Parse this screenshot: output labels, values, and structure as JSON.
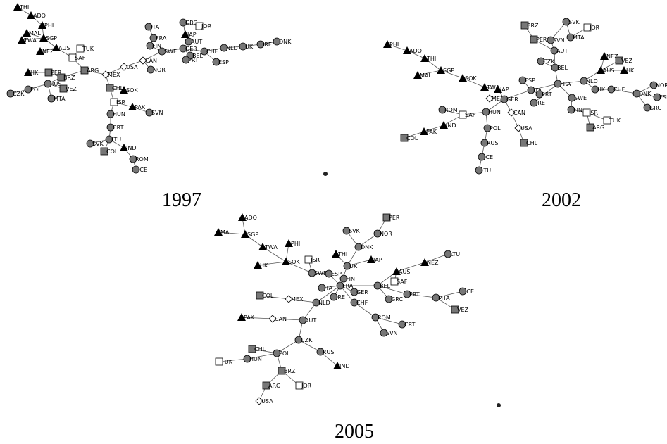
{
  "panels": [
    {
      "title": "1997",
      "nodes": [
        {
          "label": "THI",
          "shape": "triangle"
        },
        {
          "label": "ADO",
          "shape": "triangle"
        },
        {
          "label": "PHI",
          "shape": "triangle"
        },
        {
          "label": "MAL",
          "shape": "triangle"
        },
        {
          "label": "SGP",
          "shape": "triangle"
        },
        {
          "label": "TWA",
          "shape": "triangle"
        },
        {
          "label": "NEZ",
          "shape": "triangle"
        },
        {
          "label": "AUS",
          "shape": "triangle"
        },
        {
          "label": "TUK",
          "shape": "white-square"
        },
        {
          "label": "SAF",
          "shape": "white-square"
        },
        {
          "label": "HK",
          "shape": "triangle"
        },
        {
          "label": "PER",
          "shape": "gray-square"
        },
        {
          "label": "BRZ",
          "shape": "gray-square"
        },
        {
          "label": "RUS",
          "shape": "circle"
        },
        {
          "label": "POL",
          "shape": "circle"
        },
        {
          "label": "CZK",
          "shape": "circle"
        },
        {
          "label": "VEZ",
          "shape": "gray-square"
        },
        {
          "label": "MTA",
          "shape": "circle"
        },
        {
          "label": "ARG",
          "shape": "gray-square"
        },
        {
          "label": "MEX",
          "shape": "diamond"
        },
        {
          "label": "USA",
          "shape": "diamond"
        },
        {
          "label": "CAN",
          "shape": "diamond"
        },
        {
          "label": "NOR",
          "shape": "circle"
        },
        {
          "label": "SWE",
          "shape": "circle"
        },
        {
          "label": "FIN",
          "shape": "circle"
        },
        {
          "label": "FRA",
          "shape": "circle"
        },
        {
          "label": "ITA",
          "shape": "circle"
        },
        {
          "label": "GRC",
          "shape": "circle"
        },
        {
          "label": "JOR",
          "shape": "white-square"
        },
        {
          "label": "JAP",
          "shape": "triangle"
        },
        {
          "label": "AUT",
          "shape": "circle"
        },
        {
          "label": "GER",
          "shape": "circle"
        },
        {
          "label": "BEL",
          "shape": "circle"
        },
        {
          "label": "PRT",
          "shape": "circle"
        },
        {
          "label": "CHF",
          "shape": "circle"
        },
        {
          "label": "ESP",
          "shape": "circle"
        },
        {
          "label": "NLD",
          "shape": "circle"
        },
        {
          "label": "UK",
          "shape": "circle"
        },
        {
          "label": "IRE",
          "shape": "circle"
        },
        {
          "label": "DNK",
          "shape": "circle"
        },
        {
          "label": "CHL",
          "shape": "gray-square"
        },
        {
          "label": "SOK",
          "shape": "triangle"
        },
        {
          "label": "ISR",
          "shape": "white-square"
        },
        {
          "label": "PAK",
          "shape": "triangle"
        },
        {
          "label": "SVN",
          "shape": "circle"
        },
        {
          "label": "HUN",
          "shape": "circle"
        },
        {
          "label": "CRT",
          "shape": "circle"
        },
        {
          "label": "LTU",
          "shape": "circle"
        },
        {
          "label": "SVK",
          "shape": "circle"
        },
        {
          "label": "COL",
          "shape": "gray-square"
        },
        {
          "label": "IND",
          "shape": "triangle"
        },
        {
          "label": "ROM",
          "shape": "circle"
        },
        {
          "label": "ICE",
          "shape": "circle"
        }
      ]
    },
    {
      "title": "2002",
      "nodes": [
        {
          "label": "PHI",
          "shape": "triangle"
        },
        {
          "label": "ADO",
          "shape": "triangle"
        },
        {
          "label": "THI",
          "shape": "triangle"
        },
        {
          "label": "MAL",
          "shape": "triangle"
        },
        {
          "label": "SGP",
          "shape": "triangle"
        },
        {
          "label": "SOK",
          "shape": "triangle"
        },
        {
          "label": "TWA",
          "shape": "triangle"
        },
        {
          "label": "JAP",
          "shape": "triangle"
        },
        {
          "label": "MEX",
          "shape": "diamond"
        },
        {
          "label": "GER",
          "shape": "circle"
        },
        {
          "label": "ROM",
          "shape": "circle"
        },
        {
          "label": "SAF",
          "shape": "white-square"
        },
        {
          "label": "HUN",
          "shape": "circle"
        },
        {
          "label": "CAN",
          "shape": "diamond"
        },
        {
          "label": "IND",
          "shape": "triangle"
        },
        {
          "label": "PAK",
          "shape": "triangle"
        },
        {
          "label": "COL",
          "shape": "gray-square"
        },
        {
          "label": "POL",
          "shape": "circle"
        },
        {
          "label": "USA",
          "shape": "diamond"
        },
        {
          "label": "CHL",
          "shape": "gray-square"
        },
        {
          "label": "RUS",
          "shape": "circle"
        },
        {
          "label": "ICE",
          "shape": "circle"
        },
        {
          "label": "LTU",
          "shape": "circle"
        },
        {
          "label": "ESP",
          "shape": "circle"
        },
        {
          "label": "ITA",
          "shape": "circle"
        },
        {
          "label": "PRT",
          "shape": "circle"
        },
        {
          "label": "IRE",
          "shape": "circle"
        },
        {
          "label": "FRA",
          "shape": "circle"
        },
        {
          "label": "BEL",
          "shape": "circle"
        },
        {
          "label": "CZK",
          "shape": "circle"
        },
        {
          "label": "AUT",
          "shape": "circle"
        },
        {
          "label": "BRZ",
          "shape": "gray-square"
        },
        {
          "label": "PER",
          "shape": "gray-square"
        },
        {
          "label": "SVN",
          "shape": "circle"
        },
        {
          "label": "SVK",
          "shape": "circle"
        },
        {
          "label": "JOR",
          "shape": "white-square"
        },
        {
          "label": "MTA",
          "shape": "circle"
        },
        {
          "label": "NLD",
          "shape": "circle"
        },
        {
          "label": "SWE",
          "shape": "circle"
        },
        {
          "label": "FIN",
          "shape": "circle"
        },
        {
          "label": "ISR",
          "shape": "white-square"
        },
        {
          "label": "TUK",
          "shape": "white-square"
        },
        {
          "label": "ARG",
          "shape": "gray-square"
        },
        {
          "label": "NEZ",
          "shape": "triangle"
        },
        {
          "label": "VEZ",
          "shape": "gray-square"
        },
        {
          "label": "AUS",
          "shape": "triangle"
        },
        {
          "label": "HK",
          "shape": "triangle"
        },
        {
          "label": "UK",
          "shape": "circle"
        },
        {
          "label": "CHF",
          "shape": "circle"
        },
        {
          "label": "DNK",
          "shape": "circle"
        },
        {
          "label": "NOR",
          "shape": "circle"
        },
        {
          "label": "ESP",
          "shape": "circle"
        },
        {
          "label": "GRC",
          "shape": "circle"
        }
      ]
    },
    {
      "title": "2005",
      "nodes": [
        {
          "label": "ADO",
          "shape": "triangle"
        },
        {
          "label": "MAL",
          "shape": "triangle"
        },
        {
          "label": "SGP",
          "shape": "triangle"
        },
        {
          "label": "TWA",
          "shape": "triangle"
        },
        {
          "label": "PHI",
          "shape": "triangle"
        },
        {
          "label": "ISR",
          "shape": "white-square"
        },
        {
          "label": "HK",
          "shape": "triangle"
        },
        {
          "label": "SOK",
          "shape": "triangle"
        },
        {
          "label": "THI",
          "shape": "triangle"
        },
        {
          "label": "SVK",
          "shape": "circle"
        },
        {
          "label": "NOR",
          "shape": "circle"
        },
        {
          "label": "PER",
          "shape": "gray-square"
        },
        {
          "label": "DNK",
          "shape": "circle"
        },
        {
          "label": "JAP",
          "shape": "triangle"
        },
        {
          "label": "UK",
          "shape": "circle"
        },
        {
          "label": "SWE",
          "shape": "circle"
        },
        {
          "label": "ESP",
          "shape": "circle"
        },
        {
          "label": "FIN",
          "shape": "circle"
        },
        {
          "label": "ITA",
          "shape": "circle"
        },
        {
          "label": "FRA",
          "shape": "circle"
        },
        {
          "label": "GER",
          "shape": "circle"
        },
        {
          "label": "IRE",
          "shape": "circle"
        },
        {
          "label": "CHF",
          "shape": "circle"
        },
        {
          "label": "BEL",
          "shape": "circle"
        },
        {
          "label": "AUS",
          "shape": "triangle"
        },
        {
          "label": "SAF",
          "shape": "white-square"
        },
        {
          "label": "NEZ",
          "shape": "triangle"
        },
        {
          "label": "LTU",
          "shape": "circle"
        },
        {
          "label": "GRC",
          "shape": "circle"
        },
        {
          "label": "PRT",
          "shape": "circle"
        },
        {
          "label": "MTA",
          "shape": "circle"
        },
        {
          "label": "ICE",
          "shape": "circle"
        },
        {
          "label": "VEZ",
          "shape": "gray-square"
        },
        {
          "label": "ROM",
          "shape": "circle"
        },
        {
          "label": "CRT",
          "shape": "circle"
        },
        {
          "label": "SVN",
          "shape": "circle"
        },
        {
          "label": "COL",
          "shape": "gray-square"
        },
        {
          "label": "MEX",
          "shape": "diamond"
        },
        {
          "label": "NLD",
          "shape": "circle"
        },
        {
          "label": "PAK",
          "shape": "triangle"
        },
        {
          "label": "CAN",
          "shape": "diamond"
        },
        {
          "label": "AUT",
          "shape": "circle"
        },
        {
          "label": "CZK",
          "shape": "circle"
        },
        {
          "label": "RUS",
          "shape": "circle"
        },
        {
          "label": "IND",
          "shape": "triangle"
        },
        {
          "label": "CHL",
          "shape": "gray-square"
        },
        {
          "label": "POL",
          "shape": "circle"
        },
        {
          "label": "HUN",
          "shape": "circle"
        },
        {
          "label": "TUK",
          "shape": "white-square"
        },
        {
          "label": "BRZ",
          "shape": "gray-square"
        },
        {
          "label": "ARG",
          "shape": "gray-square"
        },
        {
          "label": "JOR",
          "shape": "white-square"
        },
        {
          "label": "USA",
          "shape": "diamond"
        }
      ]
    }
  ]
}
